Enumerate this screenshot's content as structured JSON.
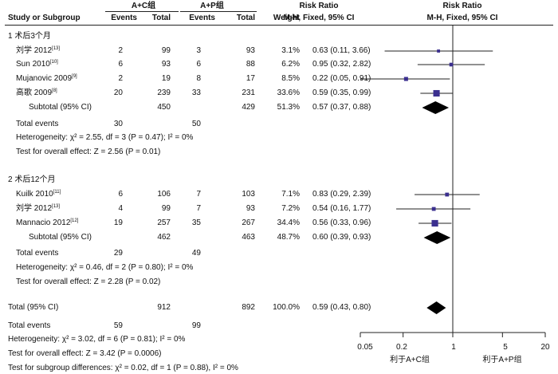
{
  "header": {
    "group1": "A+C组",
    "group2": "A+P组",
    "study_col": "Study or Subgroup",
    "events": "Events",
    "total": "Total",
    "weight": "Weight",
    "rr_title": "Risk Ratio",
    "rr_method": "M-H, Fixed, 95% CI",
    "rr_title2": "Risk Ratio",
    "rr_method2": "M-H, Fixed, 95% CI"
  },
  "subgroups": [
    {
      "title": "1 术后3个月",
      "studies": [
        {
          "name": "刘学 2012",
          "ref": "[13]",
          "e1": "2",
          "t1": "99",
          "e2": "3",
          "t2": "93",
          "weight": "3.1%",
          "ci": "0.63 (0.11, 3.66)"
        },
        {
          "name": "Sun 2010",
          "ref": "[10]",
          "e1": "6",
          "t1": "93",
          "e2": "6",
          "t2": "88",
          "weight": "6.2%",
          "ci": "0.95 (0.32, 2.82)"
        },
        {
          "name": "Mujanovic 2009",
          "ref": "[9]",
          "e1": "2",
          "t1": "19",
          "e2": "8",
          "t2": "17",
          "weight": "8.5%",
          "ci": "0.22 (0.05, 0.91)"
        },
        {
          "name": "高歌 2009",
          "ref": "[8]",
          "e1": "20",
          "t1": "239",
          "e2": "33",
          "t2": "231",
          "weight": "33.6%",
          "ci": "0.59 (0.35, 0.99)"
        }
      ],
      "subtotal": {
        "label": "Subtotal (95% CI)",
        "t1": "450",
        "t2": "429",
        "weight": "51.3%",
        "ci": "0.57 (0.37, 0.88)"
      },
      "total_events": {
        "label": "Total events",
        "e1": "30",
        "e2": "50"
      },
      "heterogeneity": "Heterogeneity: χ² = 2.55, df = 3 (P = 0.47); I² = 0%",
      "overall": "Test for overall effect: Z = 2.56 (P = 0.01)"
    },
    {
      "title": "2 术后12个月",
      "studies": [
        {
          "name": "Kuilk 2010",
          "ref": "[11]",
          "e1": "6",
          "t1": "106",
          "e2": "7",
          "t2": "103",
          "weight": "7.1%",
          "ci": "0.83 (0.29, 2.39)"
        },
        {
          "name": "刘学 2012",
          "ref": "[13]",
          "e1": "4",
          "t1": "99",
          "e2": "7",
          "t2": "93",
          "weight": "7.2%",
          "ci": "0.54 (0.16, 1.77)"
        },
        {
          "name": "Mannacio 2012",
          "ref": "[12]",
          "e1": "19",
          "t1": "257",
          "e2": "35",
          "t2": "267",
          "weight": "34.4%",
          "ci": "0.56 (0.33, 0.96)"
        }
      ],
      "subtotal": {
        "label": "Subtotal (95% CI)",
        "t1": "462",
        "t2": "463",
        "weight": "48.7%",
        "ci": "0.60 (0.39, 0.93)"
      },
      "total_events": {
        "label": "Total events",
        "e1": "29",
        "e2": "49"
      },
      "heterogeneity": "Heterogeneity: χ² = 0.46, df = 2 (P = 0.80); I² = 0%",
      "overall": "Test for overall effect: Z = 2.28 (P = 0.02)"
    }
  ],
  "total": {
    "label": "Total (95% CI)",
    "t1": "912",
    "t2": "892",
    "weight": "100.0%",
    "ci": "0.59 (0.43, 0.80)"
  },
  "total_events": {
    "label": "Total events",
    "e1": "59",
    "e2": "99"
  },
  "heterogeneity": "Heterogeneity: χ² = 3.02, df = 6 (P = 0.81); I² = 0%",
  "overall": "Test for overall effect: Z = 3.42 (P = 0.0006)",
  "subgroup_diff": "Test for subgroup differences: χ² = 0.02, df = 1 (P = 0.88), I² = 0%",
  "axis": {
    "ticks": [
      "0.05",
      "0.2",
      "1",
      "5",
      "20"
    ],
    "favours_left": "利于A+C组",
    "favours_right": "利于A+P组"
  },
  "chart_data": {
    "type": "forest",
    "xscale": "log",
    "xlim": [
      0.05,
      20
    ],
    "reference": 1,
    "marker_color": "#3b2f8f",
    "points": [
      {
        "name": "刘学 2012",
        "rr": 0.63,
        "lo": 0.11,
        "hi": 3.66,
        "weight": 3.1,
        "kind": "study"
      },
      {
        "name": "Sun 2010",
        "rr": 0.95,
        "lo": 0.32,
        "hi": 2.82,
        "weight": 6.2,
        "kind": "study"
      },
      {
        "name": "Mujanovic 2009",
        "rr": 0.22,
        "lo": 0.05,
        "hi": 0.91,
        "weight": 8.5,
        "kind": "study"
      },
      {
        "name": "高歌 2009",
        "rr": 0.59,
        "lo": 0.35,
        "hi": 0.99,
        "weight": 33.6,
        "kind": "study"
      },
      {
        "name": "Subtotal 1",
        "rr": 0.57,
        "lo": 0.37,
        "hi": 0.88,
        "weight": 51.3,
        "kind": "diamond"
      },
      {
        "name": "Kuilk 2010",
        "rr": 0.83,
        "lo": 0.29,
        "hi": 2.39,
        "weight": 7.1,
        "kind": "study"
      },
      {
        "name": "刘学 2012",
        "rr": 0.54,
        "lo": 0.16,
        "hi": 1.77,
        "weight": 7.2,
        "kind": "study"
      },
      {
        "name": "Mannacio 2012",
        "rr": 0.56,
        "lo": 0.33,
        "hi": 0.96,
        "weight": 34.4,
        "kind": "study"
      },
      {
        "name": "Subtotal 2",
        "rr": 0.6,
        "lo": 0.39,
        "hi": 0.93,
        "weight": 48.7,
        "kind": "diamond"
      },
      {
        "name": "Total",
        "rr": 0.59,
        "lo": 0.43,
        "hi": 0.8,
        "weight": 100.0,
        "kind": "diamond"
      }
    ]
  }
}
